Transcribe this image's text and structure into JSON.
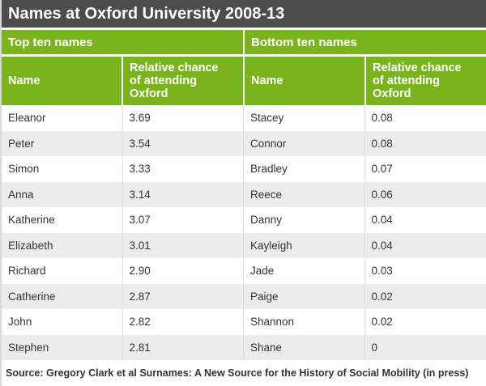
{
  "title": "Names at Oxford University 2008-13",
  "source": "Source: Gregory Clark et al Surnames: A New Source for the History of Social Mobility (in press)",
  "colors": {
    "accent_green": "#7ab41c",
    "title_bar_dark": "#4c4c4c",
    "row_stripe": "#ececec",
    "body_text": "#333333"
  },
  "table": {
    "section_headers": {
      "left": "Top ten names",
      "right": "Bottom ten names"
    },
    "column_headers": {
      "name": "Name",
      "chance": "Relative chance of attending Oxford"
    },
    "rows": [
      {
        "top_name": "Eleanor",
        "top_value": "3.69",
        "bottom_name": "Stacey",
        "bottom_value": "0.08"
      },
      {
        "top_name": "Peter",
        "top_value": "3.54",
        "bottom_name": "Connor",
        "bottom_value": "0.08"
      },
      {
        "top_name": "Simon",
        "top_value": "3.33",
        "bottom_name": "Bradley",
        "bottom_value": "0.07"
      },
      {
        "top_name": "Anna",
        "top_value": "3.14",
        "bottom_name": "Reece",
        "bottom_value": "0.06"
      },
      {
        "top_name": "Katherine",
        "top_value": "3.07",
        "bottom_name": "Danny",
        "bottom_value": "0.04"
      },
      {
        "top_name": "Elizabeth",
        "top_value": "3.01",
        "bottom_name": "Kayleigh",
        "bottom_value": "0.04"
      },
      {
        "top_name": "Richard",
        "top_value": "2.90",
        "bottom_name": "Jade",
        "bottom_value": "0.03"
      },
      {
        "top_name": "Catherine",
        "top_value": "2.87",
        "bottom_name": "Paige",
        "bottom_value": "0.02"
      },
      {
        "top_name": "John",
        "top_value": "2.82",
        "bottom_name": "Shannon",
        "bottom_value": "0.02"
      },
      {
        "top_name": "Stephen",
        "top_value": "2.81",
        "bottom_name": "Shane",
        "bottom_value": "0"
      }
    ]
  },
  "chart_data": {
    "type": "table",
    "title": "Names at Oxford University 2008-13",
    "value_label": "Relative chance of attending Oxford",
    "series": [
      {
        "name": "Top ten names",
        "categories": [
          "Eleanor",
          "Peter",
          "Simon",
          "Anna",
          "Katherine",
          "Elizabeth",
          "Richard",
          "Catherine",
          "John",
          "Stephen"
        ],
        "values": [
          3.69,
          3.54,
          3.33,
          3.14,
          3.07,
          3.01,
          2.9,
          2.87,
          2.82,
          2.81
        ]
      },
      {
        "name": "Bottom ten names",
        "categories": [
          "Stacey",
          "Connor",
          "Bradley",
          "Reece",
          "Danny",
          "Kayleigh",
          "Jade",
          "Paige",
          "Shannon",
          "Shane"
        ],
        "values": [
          0.08,
          0.08,
          0.07,
          0.06,
          0.04,
          0.04,
          0.03,
          0.02,
          0.02,
          0
        ]
      }
    ],
    "source": "Source: Gregory Clark et al Surnames: A New Source for the History of Social Mobility (in press)"
  }
}
